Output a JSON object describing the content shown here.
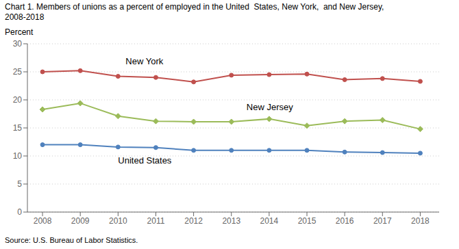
{
  "chart_data": {
    "type": "line",
    "title": "Chart 1. Members of unions as a percent of employed in the United  States, New York,  and New Jersey,",
    "subtitle": "2008-2018",
    "y_label": "Percent",
    "source": "Source: U.S. Bureau of Labor Statistics.",
    "x": [
      2008,
      2009,
      2010,
      2011,
      2012,
      2013,
      2014,
      2015,
      2016,
      2017,
      2018
    ],
    "series": [
      {
        "name": "New York",
        "color": "#c0504d",
        "marker": "circle",
        "values": [
          25.0,
          25.2,
          24.2,
          24.0,
          23.2,
          24.4,
          24.5,
          24.6,
          23.6,
          23.8,
          23.3
        ]
      },
      {
        "name": "New Jersey",
        "color": "#9bbb59",
        "marker": "diamond",
        "values": [
          18.3,
          19.4,
          17.1,
          16.2,
          16.1,
          16.1,
          16.6,
          15.4,
          16.2,
          16.4,
          14.8
        ]
      },
      {
        "name": "United States",
        "color": "#4f81bd",
        "marker": "circle",
        "values": [
          12.0,
          12.0,
          11.6,
          11.5,
          11.0,
          11.0,
          11.0,
          11.0,
          10.7,
          10.6,
          10.5
        ]
      }
    ],
    "xlim": [
      2007.6,
      2018.5
    ],
    "xticks": [
      2008,
      2009,
      2010,
      2011,
      2012,
      2013,
      2014,
      2015,
      2016,
      2017,
      2018
    ],
    "ylim": [
      0,
      30
    ],
    "yticks": [
      0,
      5,
      10,
      15,
      20,
      25,
      30
    ],
    "grid": true,
    "annotations": [
      {
        "text": "New York",
        "x": 2010.2,
        "y": 26.3
      },
      {
        "text": "New Jersey",
        "x": 2013.4,
        "y": 18.2
      },
      {
        "text": "United States",
        "x": 2010.0,
        "y": 8.7
      }
    ]
  }
}
